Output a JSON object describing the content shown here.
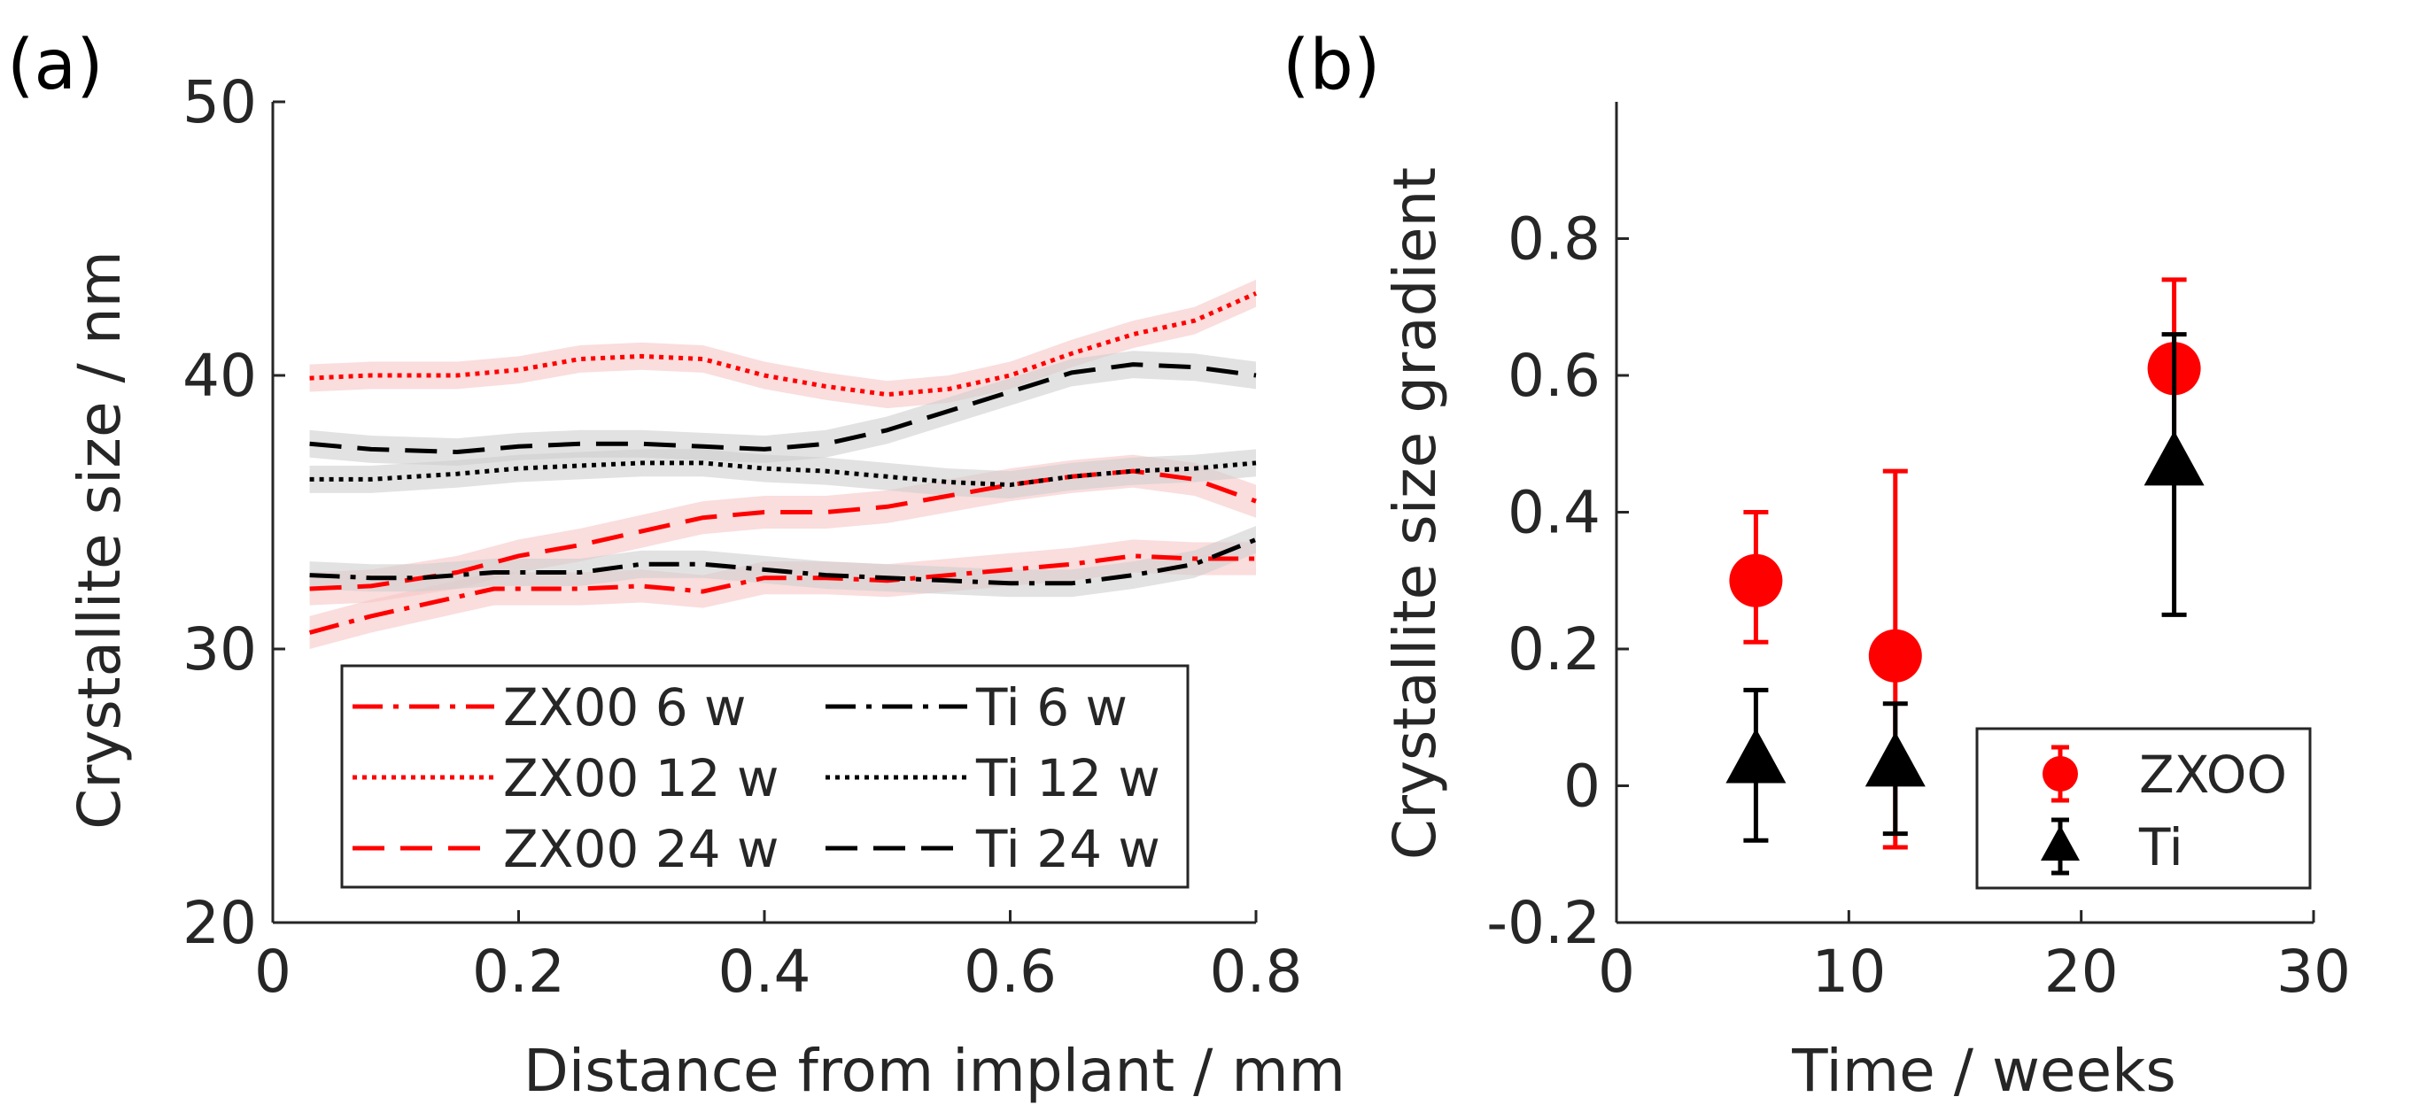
{
  "chart_data": [
    {
      "panel_label": "(a)",
      "type": "line",
      "xlabel": "Distance from implant / mm",
      "ylabel": "Crystallite size / nm",
      "xlim": [
        0,
        0.8
      ],
      "ylim": [
        20,
        50
      ],
      "xticks": [
        0,
        0.2,
        0.4,
        0.6,
        0.8
      ],
      "xtick_labels": [
        "0",
        "0.2",
        "0.4",
        "0.6",
        "0.8"
      ],
      "yticks": [
        20,
        30,
        40,
        50
      ],
      "ytick_labels": [
        "20",
        "30",
        "40",
        "50"
      ],
      "legend_position": "bottom-left",
      "series": [
        {
          "name": "ZX00 6 w",
          "color": "#ff0000",
          "style": "dashdot",
          "band": 0.6,
          "x": [
            0.03,
            0.08,
            0.12,
            0.18,
            0.25,
            0.3,
            0.35,
            0.4,
            0.45,
            0.5,
            0.55,
            0.6,
            0.65,
            0.7,
            0.75,
            0.8
          ],
          "y": [
            30.6,
            31.2,
            31.6,
            32.2,
            32.2,
            32.3,
            32.1,
            32.6,
            32.6,
            32.5,
            32.7,
            32.9,
            33.1,
            33.4,
            33.3,
            33.3
          ]
        },
        {
          "name": "ZX00 12 w",
          "color": "#ff0000",
          "style": "dotted",
          "band": 0.5,
          "x": [
            0.03,
            0.08,
            0.15,
            0.2,
            0.25,
            0.3,
            0.35,
            0.4,
            0.45,
            0.5,
            0.55,
            0.6,
            0.65,
            0.7,
            0.75,
            0.8
          ],
          "y": [
            39.9,
            40.0,
            40.0,
            40.2,
            40.6,
            40.7,
            40.6,
            40.0,
            39.6,
            39.3,
            39.5,
            40.0,
            40.8,
            41.5,
            42.0,
            43.0
          ]
        },
        {
          "name": "ZX00 24 w",
          "color": "#ff0000",
          "style": "dashed",
          "band": 0.6,
          "x": [
            0.03,
            0.08,
            0.15,
            0.2,
            0.25,
            0.3,
            0.35,
            0.4,
            0.45,
            0.5,
            0.55,
            0.6,
            0.65,
            0.7,
            0.75,
            0.8
          ],
          "y": [
            32.2,
            32.3,
            32.8,
            33.4,
            33.8,
            34.3,
            34.8,
            35.0,
            35.0,
            35.2,
            35.6,
            36.0,
            36.3,
            36.5,
            36.2,
            35.4
          ]
        },
        {
          "name": "Ti 6 w",
          "color": "#000000",
          "style": "dashdot",
          "band": 0.5,
          "x": [
            0.03,
            0.08,
            0.12,
            0.18,
            0.25,
            0.3,
            0.35,
            0.4,
            0.45,
            0.5,
            0.55,
            0.6,
            0.65,
            0.7,
            0.75,
            0.8
          ],
          "y": [
            32.7,
            32.6,
            32.6,
            32.8,
            32.8,
            33.1,
            33.1,
            32.9,
            32.7,
            32.6,
            32.5,
            32.4,
            32.4,
            32.7,
            33.1,
            34.0
          ]
        },
        {
          "name": "Ti 12 w",
          "color": "#000000",
          "style": "dotted",
          "band": 0.5,
          "x": [
            0.03,
            0.08,
            0.15,
            0.2,
            0.25,
            0.3,
            0.35,
            0.4,
            0.45,
            0.5,
            0.55,
            0.6,
            0.65,
            0.7,
            0.75,
            0.8
          ],
          "y": [
            36.2,
            36.2,
            36.4,
            36.6,
            36.7,
            36.8,
            36.8,
            36.6,
            36.5,
            36.3,
            36.1,
            36.0,
            36.3,
            36.5,
            36.6,
            36.8
          ]
        },
        {
          "name": "Ti 24 w",
          "color": "#000000",
          "style": "dashed",
          "band": 0.5,
          "x": [
            0.03,
            0.08,
            0.15,
            0.2,
            0.25,
            0.3,
            0.35,
            0.4,
            0.45,
            0.5,
            0.55,
            0.6,
            0.65,
            0.7,
            0.75,
            0.8
          ],
          "y": [
            37.5,
            37.3,
            37.2,
            37.4,
            37.5,
            37.5,
            37.4,
            37.3,
            37.5,
            38.0,
            38.7,
            39.4,
            40.1,
            40.4,
            40.3,
            40.0
          ]
        }
      ]
    },
    {
      "panel_label": "(b)",
      "type": "scatter",
      "xlabel": "Time / weeks",
      "ylabel": "Crystallite size gradient",
      "xlim": [
        0,
        30
      ],
      "ylim": [
        -0.2,
        1.0
      ],
      "xticks": [
        0,
        10,
        20,
        30
      ],
      "xtick_labels": [
        "0",
        "10",
        "20",
        "30"
      ],
      "yticks": [
        -0.2,
        0,
        0.2,
        0.4,
        0.6,
        0.8
      ],
      "ytick_labels": [
        "-0.2",
        "0",
        "0.2",
        "0.4",
        "0.6",
        "0.8"
      ],
      "legend_position": "bottom-right",
      "series": [
        {
          "name": "ZXOO",
          "color": "#ff0000",
          "marker": "circle",
          "x": [
            6,
            12,
            24
          ],
          "y": [
            0.3,
            0.19,
            0.61
          ],
          "err_low": [
            0.21,
            -0.09,
            0.48
          ],
          "err_high": [
            0.4,
            0.46,
            0.74
          ]
        },
        {
          "name": "Ti",
          "color": "#000000",
          "marker": "triangle",
          "x": [
            6,
            12,
            24
          ],
          "y": [
            0.035,
            0.03,
            0.47
          ],
          "err_low": [
            -0.08,
            -0.07,
            0.25
          ],
          "err_high": [
            0.14,
            0.12,
            0.66
          ]
        }
      ]
    }
  ]
}
